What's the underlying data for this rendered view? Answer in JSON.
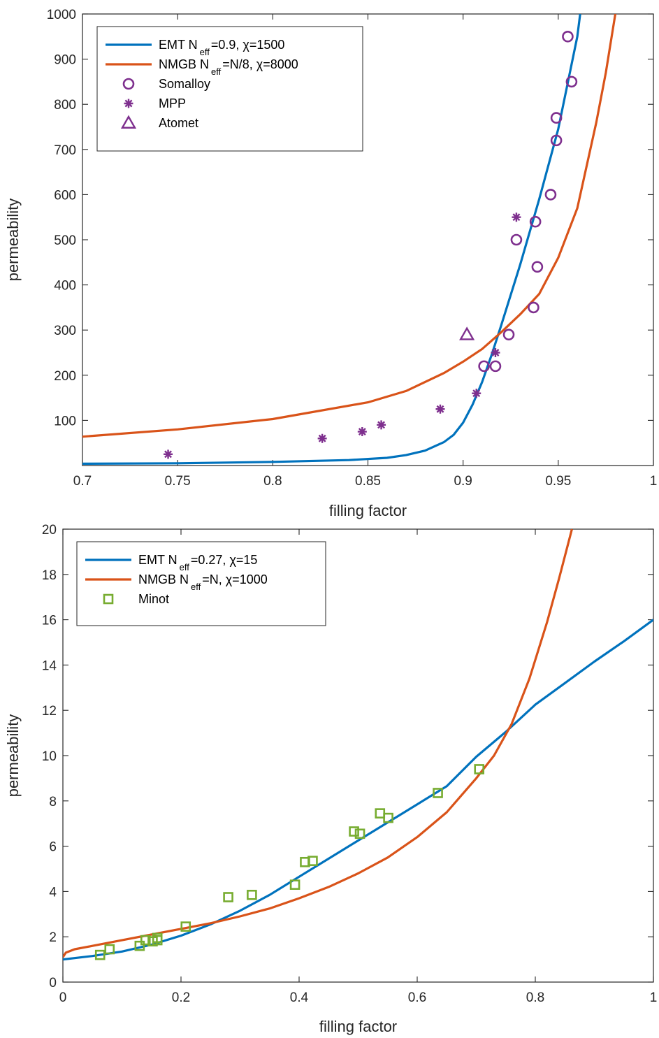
{
  "colors": {
    "emt": "#0072BD",
    "nmgb": "#D95319",
    "purple": "#7E2F8E",
    "green": "#77AC30",
    "axis": "#262626"
  },
  "chart_data": [
    {
      "type": "line",
      "xlabel": "filling factor",
      "ylabel": "permeability",
      "xlim": [
        0.7,
        1.0
      ],
      "ylim": [
        0,
        1000
      ],
      "xticks": [
        0.7,
        0.75,
        0.8,
        0.85,
        0.9,
        0.95,
        1
      ],
      "xtick_labels": [
        "0.7",
        "0.75",
        "0.8",
        "0.85",
        "0.9",
        "0.95",
        "1"
      ],
      "yticks": [
        100,
        200,
        300,
        400,
        500,
        600,
        700,
        800,
        900,
        1000
      ],
      "ytick_labels": [
        "100",
        "200",
        "300",
        "400",
        "500",
        "600",
        "700",
        "800",
        "900",
        "1000"
      ],
      "legend_position": "top-left",
      "legend": [
        {
          "pre": "EMT N",
          "sub": "eff",
          "post": "=0.9,  χ=1500"
        },
        {
          "pre": "NMGB N",
          "sub": "eff",
          "post": "=N/8,   χ=8000"
        },
        {
          "pre": "Somalloy",
          "sub": "",
          "post": ""
        },
        {
          "pre": "MPP",
          "sub": "",
          "post": ""
        },
        {
          "pre": "Atomet",
          "sub": "",
          "post": ""
        }
      ],
      "series": [
        {
          "kind": "line",
          "color": "#0072BD",
          "x": [
            0.7,
            0.75,
            0.8,
            0.84,
            0.86,
            0.87,
            0.88,
            0.89,
            0.895,
            0.9,
            0.905,
            0.91,
            0.915,
            0.92,
            0.93,
            0.94,
            0.95,
            0.96,
            0.9615
          ],
          "y": [
            4,
            5,
            8,
            12,
            17,
            23,
            33,
            52,
            68,
            95,
            135,
            185,
            245,
            310,
            445,
            590,
            745,
            950,
            1000
          ]
        },
        {
          "kind": "line",
          "color": "#D95319",
          "x": [
            0.7,
            0.75,
            0.8,
            0.85,
            0.87,
            0.89,
            0.9,
            0.91,
            0.92,
            0.93,
            0.94,
            0.95,
            0.96,
            0.97,
            0.975,
            0.98,
            0.9805
          ],
          "y": [
            64,
            80,
            103,
            140,
            165,
            205,
            230,
            258,
            295,
            335,
            380,
            460,
            570,
            760,
            870,
            1000,
            1000
          ]
        },
        {
          "kind": "marker",
          "marker": "circle",
          "color": "#7E2F8E",
          "x": [
            0.911,
            0.917,
            0.924,
            0.937,
            0.928,
            0.938,
            0.939,
            0.946,
            0.949,
            0.949,
            0.957,
            0.955
          ],
          "y": [
            220,
            220,
            290,
            350,
            500,
            540,
            440,
            600,
            720,
            770,
            850,
            950
          ]
        },
        {
          "kind": "marker",
          "marker": "star",
          "color": "#7E2F8E",
          "x": [
            0.745,
            0.826,
            0.847,
            0.857,
            0.888,
            0.907,
            0.917,
            0.928
          ],
          "y": [
            25,
            60,
            75,
            90,
            125,
            160,
            250,
            550
          ]
        },
        {
          "kind": "marker",
          "marker": "triangle",
          "color": "#7E2F8E",
          "x": [
            0.902
          ],
          "y": [
            290
          ]
        }
      ]
    },
    {
      "type": "line",
      "xlabel": "filling factor",
      "ylabel": "permeability",
      "xlim": [
        0,
        1
      ],
      "ylim": [
        0,
        20
      ],
      "xticks": [
        0,
        0.2,
        0.4,
        0.6,
        0.8,
        1
      ],
      "xtick_labels": [
        "0",
        "0.2",
        "0.4",
        "0.6",
        "0.8",
        "1"
      ],
      "yticks": [
        0,
        2,
        4,
        6,
        8,
        10,
        12,
        14,
        16,
        18,
        20
      ],
      "ytick_labels": [
        "0",
        "2",
        "4",
        "6",
        "8",
        "10",
        "12",
        "14",
        "16",
        "18",
        "20"
      ],
      "legend_position": "top-left",
      "legend": [
        {
          "pre": "EMT N",
          "sub": "eff",
          "post": "=0.27,  χ=15"
        },
        {
          "pre": "NMGB N",
          "sub": "eff",
          "post": "=N,  χ=1000"
        },
        {
          "pre": "Minot",
          "sub": "",
          "post": ""
        }
      ],
      "series": [
        {
          "kind": "line",
          "color": "#0072BD",
          "x": [
            0,
            0.05,
            0.1,
            0.15,
            0.2,
            0.25,
            0.3,
            0.35,
            0.4,
            0.45,
            0.5,
            0.55,
            0.6,
            0.65,
            0.7,
            0.75,
            0.8,
            0.85,
            0.9,
            0.95,
            1.0
          ],
          "y": [
            1.0,
            1.15,
            1.35,
            1.65,
            2.05,
            2.55,
            3.15,
            3.85,
            4.65,
            5.45,
            6.25,
            7.05,
            7.85,
            8.65,
            9.95,
            11.05,
            12.25,
            13.2,
            14.15,
            15.05,
            16.0
          ]
        },
        {
          "kind": "line",
          "color": "#D95319",
          "x": [
            0,
            0.005,
            0.02,
            0.05,
            0.1,
            0.15,
            0.2,
            0.25,
            0.3,
            0.35,
            0.4,
            0.45,
            0.5,
            0.55,
            0.6,
            0.65,
            0.7,
            0.73,
            0.76,
            0.79,
            0.82,
            0.84,
            0.855,
            0.862
          ],
          "y": [
            1.1,
            1.3,
            1.45,
            1.6,
            1.85,
            2.1,
            2.35,
            2.6,
            2.9,
            3.25,
            3.7,
            4.2,
            4.8,
            5.5,
            6.4,
            7.5,
            9.0,
            10.0,
            11.4,
            13.4,
            15.9,
            17.8,
            19.3,
            20.0
          ]
        },
        {
          "kind": "marker",
          "marker": "square",
          "color": "#77AC30",
          "x": [
            0.063,
            0.079,
            0.13,
            0.14,
            0.152,
            0.16,
            0.16,
            0.208,
            0.28,
            0.32,
            0.393,
            0.41,
            0.423,
            0.493,
            0.503,
            0.537,
            0.551,
            0.635,
            0.705
          ],
          "y": [
            1.2,
            1.45,
            1.6,
            1.85,
            1.8,
            1.85,
            1.95,
            2.45,
            3.75,
            3.85,
            4.3,
            5.3,
            5.35,
            6.65,
            6.55,
            7.45,
            7.25,
            8.35,
            9.4
          ]
        }
      ]
    }
  ]
}
